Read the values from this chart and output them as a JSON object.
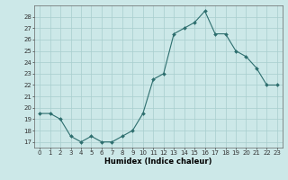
{
  "x": [
    0,
    1,
    2,
    3,
    4,
    5,
    6,
    7,
    8,
    9,
    10,
    11,
    12,
    13,
    14,
    15,
    16,
    17,
    18,
    19,
    20,
    21,
    22,
    23
  ],
  "y": [
    19.5,
    19.5,
    19.0,
    17.5,
    17.0,
    17.5,
    17.0,
    17.0,
    17.5,
    18.0,
    19.5,
    22.5,
    23.0,
    26.5,
    27.0,
    27.5,
    28.5,
    26.5,
    26.5,
    25.0,
    24.5,
    23.5,
    22.0,
    22.0
  ],
  "xlabel": "Humidex (Indice chaleur)",
  "ylim": [
    16.5,
    29.0
  ],
  "xlim": [
    -0.5,
    23.5
  ],
  "yticks": [
    17,
    18,
    19,
    20,
    21,
    22,
    23,
    24,
    25,
    26,
    27,
    28
  ],
  "xticks": [
    0,
    1,
    2,
    3,
    4,
    5,
    6,
    7,
    8,
    9,
    10,
    11,
    12,
    13,
    14,
    15,
    16,
    17,
    18,
    19,
    20,
    21,
    22,
    23
  ],
  "line_color": "#2d6e6e",
  "marker_color": "#2d6e6e",
  "bg_color": "#cce8e8",
  "grid_color": "#a8cece",
  "xlabel_fontsize": 6.0,
  "tick_fontsize": 5.0
}
